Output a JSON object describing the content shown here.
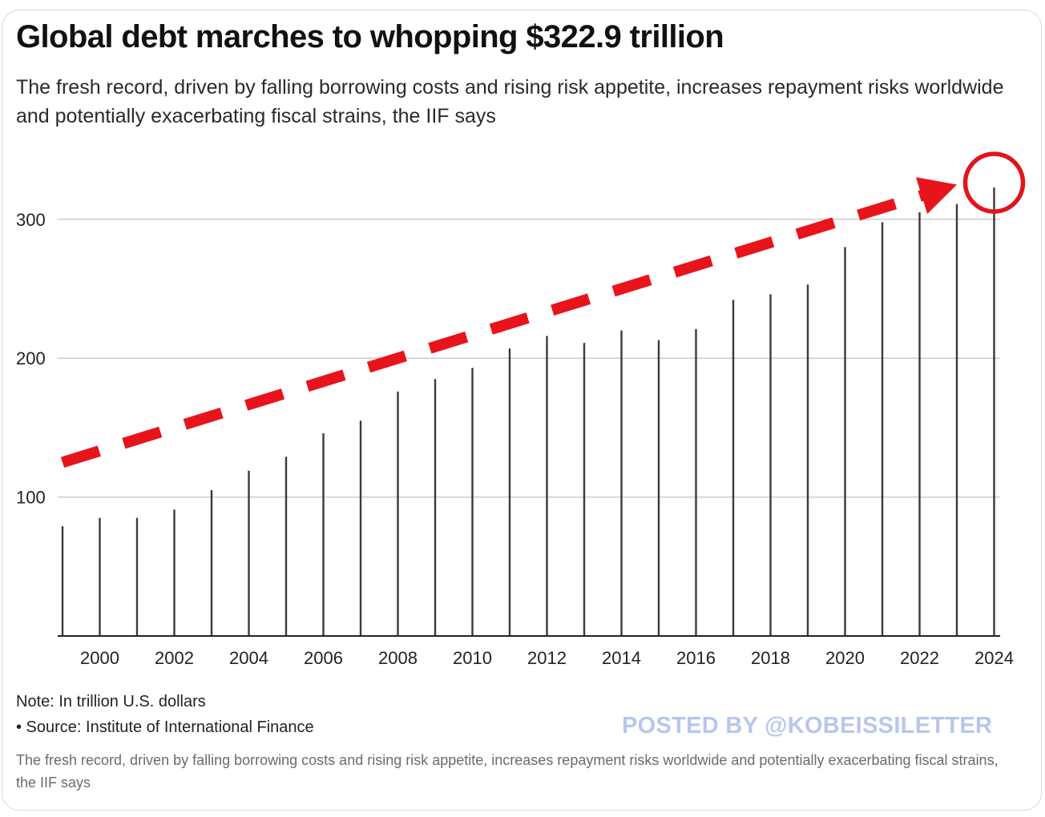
{
  "title": "Global debt marches to whopping $322.9 trillion",
  "subtitle": "The fresh record, driven by falling borrowing costs and rising risk appetite, increases repayment risks worldwide and potentially exacerbating fiscal strains, the IIF says",
  "note": "Note: In trillion U.S. dollars",
  "source": "• Source: Institute of International Finance",
  "posted_by": "POSTED BY @KOBEISSILETTER",
  "caption": "The fresh record, driven by falling borrowing costs and rising risk appetite, increases repayment risks worldwide and potentially exacerbating fiscal strains, the IIF says",
  "colors": {
    "bar": "#3a3a3a",
    "grid": "#cccccc",
    "arrow": "#e8141c",
    "highlight_circle": "#e1141c",
    "watermark": "#b7c6ec"
  },
  "chart_data": {
    "type": "bar",
    "title": "Global debt marches to whopping $322.9 trillion",
    "subtitle": "The fresh record, driven by falling borrowing costs and rising risk appetite, increases repayment risks worldwide and potentially exacerbating fiscal strains, the IIF says",
    "xlabel": "",
    "ylabel": "",
    "units": "trillion U.S. dollars",
    "ylim": [
      0,
      340
    ],
    "yticks": [
      100,
      200,
      300
    ],
    "grid": "horizontal",
    "x_tick_labels": [
      "2000",
      "2002",
      "2004",
      "2006",
      "2008",
      "2010",
      "2012",
      "2014",
      "2016",
      "2018",
      "2020",
      "2022",
      "2024"
    ],
    "categories": [
      "1999",
      "2000",
      "2001",
      "2002",
      "2003",
      "2004",
      "2005",
      "2006",
      "2007",
      "2008",
      "2009",
      "2010",
      "2011",
      "2012",
      "2013",
      "2014",
      "2015",
      "2016",
      "2017",
      "2018",
      "2019",
      "2020",
      "2021",
      "2022",
      "2023",
      "2024"
    ],
    "values": [
      79,
      85,
      85,
      91,
      105,
      119,
      129,
      146,
      155,
      176,
      185,
      193,
      207,
      216,
      211,
      220,
      213,
      221,
      242,
      246,
      253,
      280,
      298,
      305,
      311,
      322.9
    ],
    "annotations": [
      {
        "type": "trend-arrow",
        "from": {
          "x": "1999",
          "y": 125
        },
        "to": {
          "x": "2023",
          "y": 325
        },
        "style": "dashed"
      },
      {
        "type": "highlight-circle",
        "target": {
          "x": "2024",
          "y": 322.9
        }
      }
    ]
  }
}
